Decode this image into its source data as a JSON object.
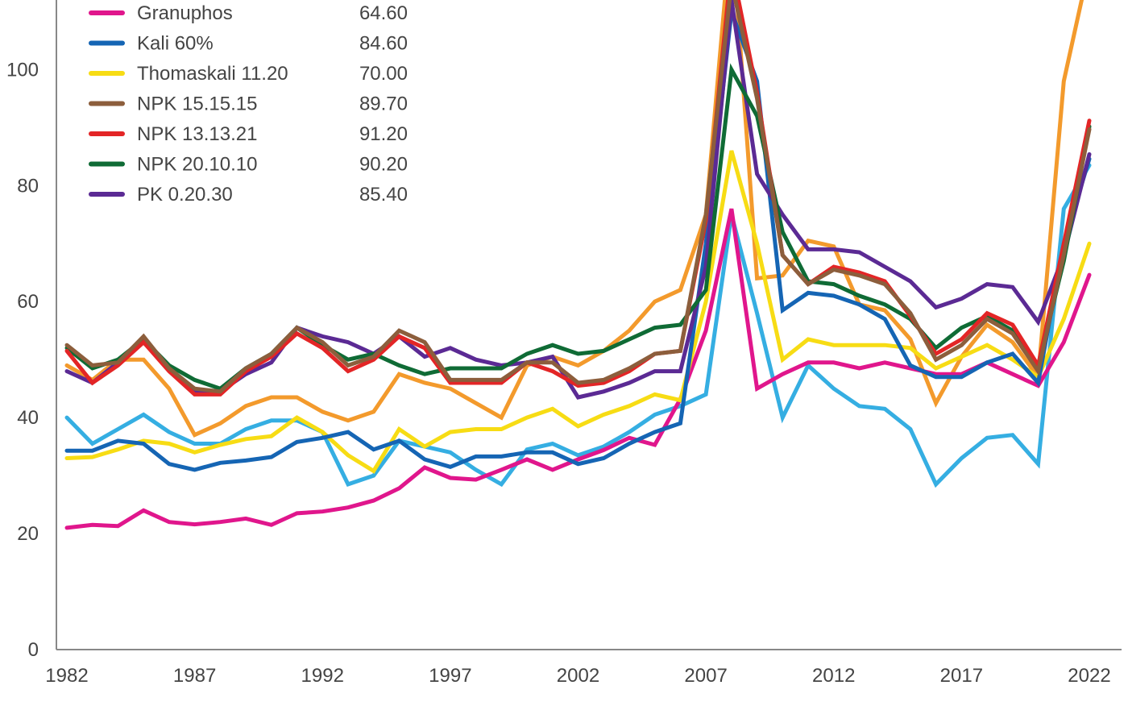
{
  "chart_data": {
    "type": "line",
    "title": "",
    "xlabel": "",
    "ylabel": "",
    "xlim": [
      1982,
      2022
    ],
    "ylim": [
      0,
      112
    ],
    "x_ticks": [
      "1982",
      "1987",
      "1992",
      "1997",
      "2002",
      "2007",
      "2012",
      "2017",
      "2022"
    ],
    "y_ticks": [
      "0",
      "20",
      "40",
      "60",
      "80",
      "100"
    ],
    "grid": false,
    "legend_position": "top-left",
    "x": [
      1982,
      1983,
      1984,
      1985,
      1986,
      1987,
      1988,
      1989,
      1990,
      1991,
      1992,
      1993,
      1994,
      1995,
      1996,
      1997,
      1998,
      1999,
      2000,
      2001,
      2002,
      2003,
      2004,
      2005,
      2006,
      2007,
      2008,
      2009,
      2010,
      2011,
      2012,
      2013,
      2014,
      2015,
      2016,
      2017,
      2018,
      2019,
      2020,
      2021,
      2022
    ],
    "series": [
      {
        "name": "Granuphos",
        "legend_value": "64.60",
        "color": "#e0168c",
        "values": [
          21,
          21.5,
          21.3,
          24,
          22,
          21.6,
          22,
          22.6,
          21.5,
          23.5,
          23.8,
          24.5,
          25.7,
          27.8,
          31.4,
          29.6,
          29.3,
          31,
          32.8,
          31,
          32.8,
          34.4,
          36.5,
          35.3,
          43.2,
          55,
          76,
          45,
          47.5,
          49.5,
          49.5,
          48.5,
          49.5,
          48.5,
          47.5,
          47.5,
          49.5,
          47.5,
          45.5,
          53,
          64.6
        ]
      },
      {
        "name": "Kali 60%",
        "legend_value": "84.60",
        "color": "#1565b4",
        "values": [
          34.3,
          34.3,
          36,
          35.5,
          32,
          31,
          32.2,
          32.6,
          33.2,
          35.8,
          36.5,
          37.5,
          34.5,
          36,
          32.8,
          31.5,
          33.3,
          33.3,
          34,
          34,
          32,
          33,
          35.5,
          37.5,
          39,
          70,
          110,
          98,
          58.5,
          61.5,
          61,
          59.5,
          57,
          49,
          47,
          47,
          49.5,
          51,
          46,
          70,
          84.6
        ]
      },
      {
        "name": "Thomaskali 11.20",
        "legend_value": "70.00",
        "color": "#f7dc14",
        "values": [
          33,
          33.2,
          34.5,
          36,
          35.5,
          34,
          35.3,
          36.3,
          36.8,
          40,
          37.5,
          33.5,
          30.8,
          38,
          35,
          37.5,
          38,
          38,
          40,
          41.5,
          38.5,
          40.5,
          42,
          44,
          43,
          60,
          86,
          70,
          50,
          53.5,
          52.5,
          52.5,
          52.5,
          52,
          48.5,
          50.5,
          52.5,
          50,
          47,
          57,
          70
        ]
      },
      {
        "name": "NPK 15.15.15",
        "legend_value": "89.70",
        "color": "#8c5e3c",
        "values": [
          52.5,
          49,
          49.5,
          54,
          48.5,
          45,
          44.5,
          48.5,
          51,
          55.5,
          53,
          49,
          50.5,
          55,
          53,
          46.5,
          46.5,
          46.5,
          49.5,
          49.5,
          46,
          46.5,
          48.5,
          51,
          51.5,
          75,
          115,
          95,
          68,
          63,
          65.5,
          64.5,
          63,
          58,
          50,
          52.5,
          57,
          54.5,
          48,
          68,
          89.7
        ]
      },
      {
        "name": "NPK 13.13.21",
        "legend_value": "91.20",
        "color": "#e32526",
        "values": [
          51.5,
          46,
          49,
          53,
          48,
          44,
          44,
          48,
          50.5,
          54.5,
          52,
          48,
          50,
          54,
          52,
          46,
          46,
          46,
          49.5,
          48,
          45.5,
          46,
          48,
          51,
          51.5,
          74,
          118,
          96,
          68,
          63,
          66,
          65,
          63.5,
          57.5,
          51,
          53.5,
          58,
          56,
          49,
          70,
          91.2
        ]
      },
      {
        "name": "NPK 20.10.10",
        "legend_value": "90.20",
        "color": "#0f6b35",
        "values": [
          52,
          48.5,
          50,
          53.5,
          49,
          46.5,
          45,
          48.5,
          51,
          55.5,
          52.5,
          50,
          51,
          49,
          47.5,
          48.5,
          48.5,
          48.5,
          51,
          52.5,
          51,
          51.5,
          53.5,
          55.5,
          56,
          62,
          100,
          92,
          72,
          63.5,
          63,
          61,
          59.5,
          57,
          52,
          55.5,
          57.5,
          55,
          49,
          67,
          90.2
        ]
      },
      {
        "name": "PK 0.20.30",
        "legend_value": "85.40",
        "color": "#5b2a94",
        "values": [
          48,
          46,
          49.5,
          53,
          48.5,
          44.5,
          44.5,
          47.5,
          49.5,
          55.5,
          54,
          53,
          51,
          54,
          50.5,
          52,
          50,
          49,
          49.5,
          50.5,
          43.5,
          44.5,
          46,
          48,
          48,
          66,
          112,
          82,
          75,
          69,
          69,
          68.5,
          66,
          63.5,
          59,
          60.5,
          63,
          62.5,
          56.5,
          68,
          85.4
        ]
      },
      {
        "color": "#f39a2c",
        "values": [
          49,
          46.5,
          50,
          50,
          45,
          37,
          39,
          42,
          43.5,
          43.5,
          41,
          39.5,
          41,
          47.5,
          46,
          45,
          42.5,
          40,
          49,
          50.5,
          49,
          51.5,
          55,
          60,
          62,
          75,
          125,
          64,
          64.5,
          70.5,
          69.5,
          59.5,
          58.5,
          53.5,
          42.5,
          50.5,
          56,
          53,
          47,
          98,
          118
        ]
      },
      {
        "color": "#35aee2",
        "values": [
          40,
          35.5,
          38,
          40.5,
          37.5,
          35.5,
          35.5,
          38,
          39.5,
          39.5,
          37.5,
          28.5,
          30,
          36,
          35,
          34,
          31,
          28.5,
          34.5,
          35.5,
          33.5,
          35,
          37.5,
          40.5,
          42,
          44,
          75,
          58,
          40,
          49,
          45,
          42,
          41.5,
          38,
          28.5,
          33,
          36.5,
          37,
          32,
          76,
          83.5
        ]
      }
    ]
  }
}
